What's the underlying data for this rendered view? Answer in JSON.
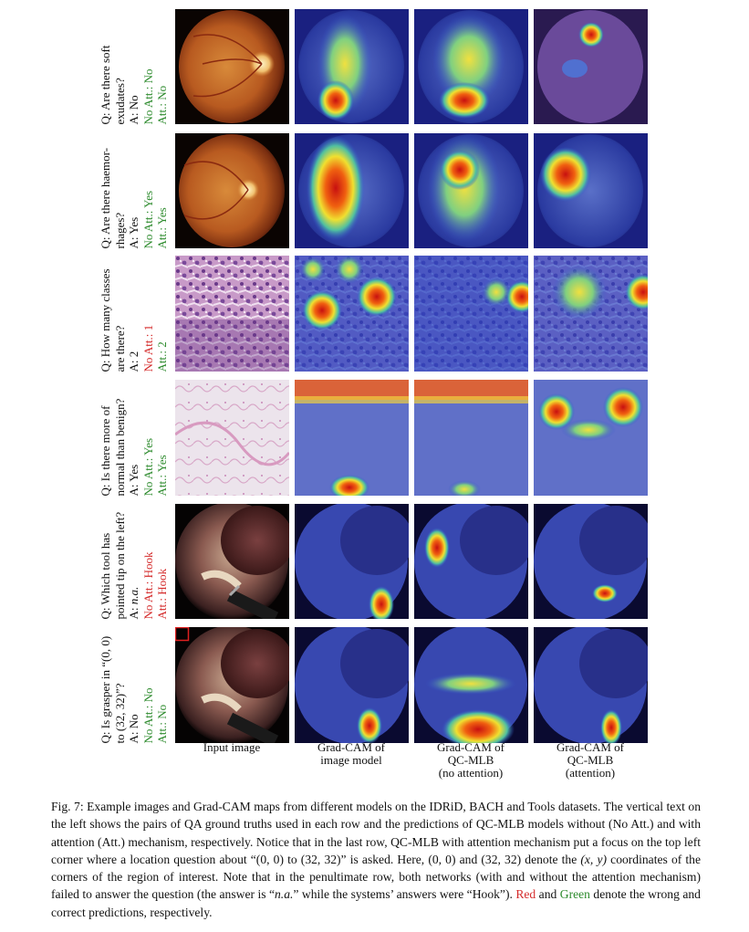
{
  "rows": [
    {
      "q": "Q: Are there soft",
      "q2": "exudates?",
      "a": "A: No",
      "noatt": "No Att.: No",
      "att": "Att.: No",
      "noatt_color": "green",
      "att_color": "green",
      "type": "fundus1"
    },
    {
      "q": "Q: Are there haemor-",
      "q2": "rhages?",
      "a": "A: Yes",
      "noatt": "No Att.: Yes",
      "att": "Att.: Yes",
      "noatt_color": "green",
      "att_color": "green",
      "type": "fundus2"
    },
    {
      "q": "Q: How many classes",
      "q2": "are there?",
      "a": "A: 2",
      "noatt": "No Att.: 1",
      "att": "Att.: 2",
      "noatt_color": "red",
      "att_color": "green",
      "type": "histo1"
    },
    {
      "q": "Q: Is there more of",
      "q2": "normal than benign?",
      "a": "A: Yes",
      "noatt": "No Att.: Yes",
      "att": "Att.: Yes",
      "noatt_color": "green",
      "att_color": "green",
      "type": "histo2"
    },
    {
      "q": "Q: Which tool has",
      "q2": "pointed tip on the left?",
      "a": "A: n.a.",
      "noatt": "No Att.: Hook",
      "att": "Att.: Hook",
      "noatt_color": "red",
      "att_color": "red",
      "type": "surg1"
    },
    {
      "q": "Q: Is grasper in “(0, 0)",
      "q2": "to (32, 32)”?",
      "a": "A: No",
      "noatt": "No Att.: No",
      "att": "Att.: No",
      "noatt_color": "green",
      "att_color": "green",
      "type": "surg2"
    }
  ],
  "columns": {
    "c1": [
      "Input image"
    ],
    "c2": [
      "Grad-CAM of",
      "image model"
    ],
    "c3": [
      "Grad-CAM of",
      "QC-MLB",
      "(no attention)"
    ],
    "c4": [
      "Grad-CAM of",
      "QC-MLB",
      "(attention)"
    ]
  },
  "caption": {
    "p1": "Fig. 7: Example images and Grad-CAM maps from different models on the IDRiD, BACH and Tools datasets. The vertical text on the left shows the pairs of QA ground truths used in each row and the predictions of QC-MLB models without (No Att.) and with attention (Att.) mechanism, respectively. Notice that in the last row, QC-MLB with attention mechanism put a focus on the top left corner where a location question about “(0, 0) to (32, 32)” is asked. Here, (0, 0) and (32, 32) denote the ",
    "xy": "(x, y)",
    "p2": " coordinates of the corners of the region of interest. Note that in the penultimate row, both networks (with and without the attention mechanism) failed to answer the question (the answer is “",
    "na": "n.a.",
    "p3": "” while the systems’ answers were “Hook”). ",
    "red_word": "Red",
    "p4": " and ",
    "green_word": "Green",
    "p5": " denote the wrong and correct predictions, respectively."
  },
  "colors": {
    "red": "#d42a2a",
    "green": "#2e8b2e"
  }
}
